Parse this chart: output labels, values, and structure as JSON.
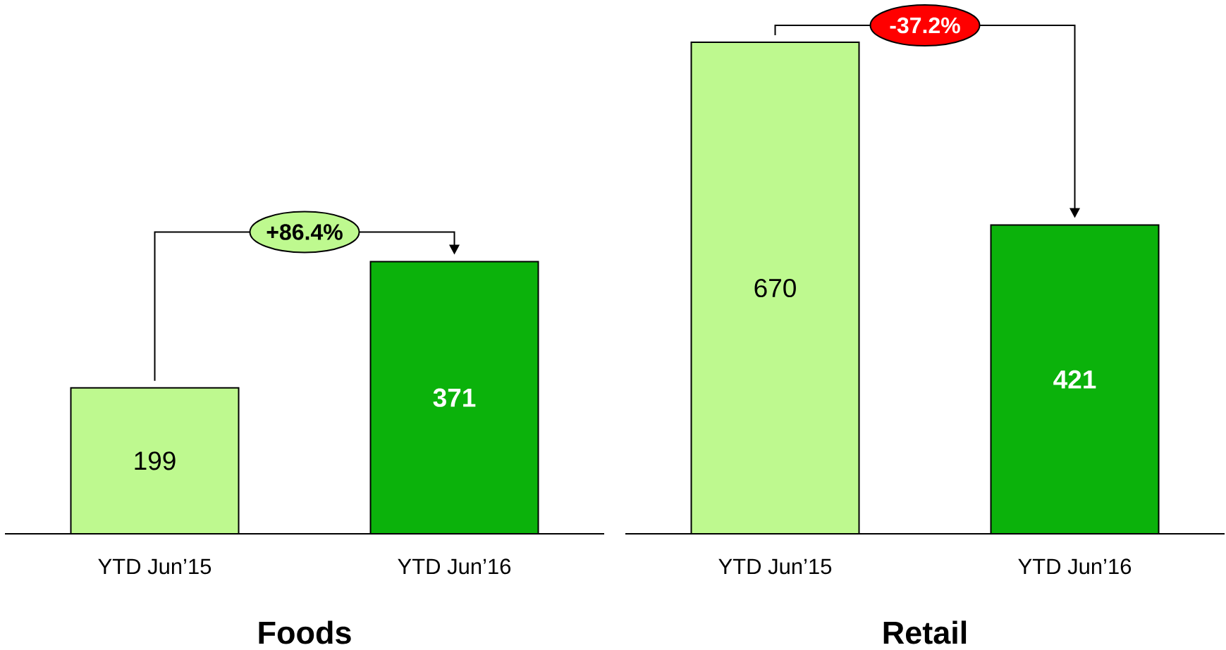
{
  "chart_data": [
    {
      "type": "bar",
      "title": "Foods",
      "categories": [
        "YTD Jun’15",
        "YTD Jun’16"
      ],
      "values": [
        199,
        371
      ],
      "colors": [
        "#bef98f",
        "#0bb20b"
      ],
      "tick_labels": "x",
      "data_labels": true,
      "annotations": [
        "+86.4%"
      ]
    },
    {
      "type": "bar",
      "title": "Retail",
      "categories": [
        "YTD Jun’15",
        "YTD Jun’16"
      ],
      "values": [
        670,
        421
      ],
      "colors": [
        "#bef98f",
        "#0bb20b"
      ],
      "tick_labels": "x",
      "data_labels": true,
      "annotations": [
        "-37.2%"
      ]
    }
  ]
}
